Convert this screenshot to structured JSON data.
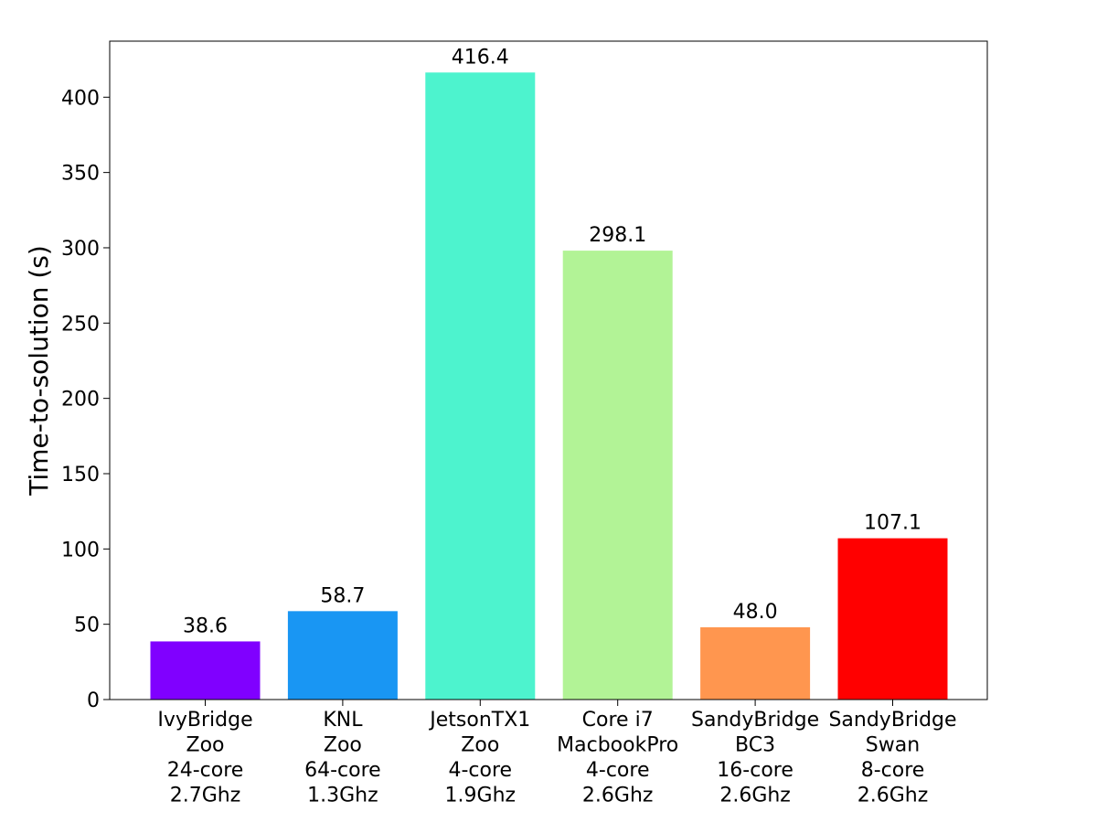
{
  "chart_data": {
    "type": "bar",
    "categories": [
      [
        "IvyBridge",
        "Zoo",
        "24-core",
        "2.7Ghz"
      ],
      [
        "KNL",
        "Zoo",
        "64-core",
        "1.3Ghz"
      ],
      [
        "JetsonTX1",
        "Zoo",
        "4-core",
        "1.9Ghz"
      ],
      [
        "Core i7",
        "MacbookPro",
        "4-core",
        "2.6Ghz"
      ],
      [
        "SandyBridge",
        "BC3",
        "16-core",
        "2.6Ghz"
      ],
      [
        "SandyBridge",
        "Swan",
        "8-core",
        "2.6Ghz"
      ]
    ],
    "values": [
      38.6,
      58.7,
      416.4,
      298.1,
      48.0,
      107.1
    ],
    "value_labels": [
      "38.6",
      "58.7",
      "416.4",
      "298.1",
      "48.0",
      "107.1"
    ],
    "colors": [
      "#8000ff",
      "#1996f3",
      "#4df3ce",
      "#b2f396",
      "#ff964f",
      "#ff0000"
    ],
    "title": "",
    "xlabel": "",
    "ylabel": "Time-to-solution (s)",
    "ylim": [
      0,
      437.22
    ],
    "yticks": [
      0,
      50,
      100,
      150,
      200,
      250,
      300,
      350,
      400
    ],
    "grid": false
  }
}
